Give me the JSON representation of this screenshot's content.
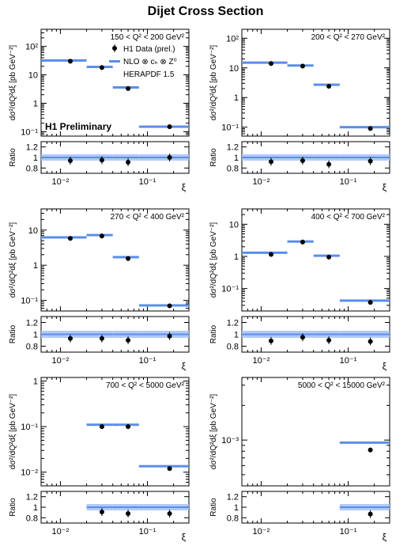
{
  "title": "Dijet Cross Section",
  "colors": {
    "theory": "#5a8ee8",
    "band": "#a9c4f5",
    "data": "#000000",
    "label_box": "#ffffff"
  },
  "chart_data": [
    {
      "type": "scatter",
      "panel": "top-left",
      "label": "150 < Q² < 200 GeV²",
      "ylabel": "dσ²/dQ²dξ [pb GeV⁻²]",
      "ratio_label": "Ratio",
      "xlabel": "ξ",
      "preliminary": "H1 Preliminary",
      "legend": {
        "placement": "top-right",
        "entries": [
          "H1 Data (prel.)",
          "NLO ⊗ cₕ ⊗ Z⁰",
          "HERAPDF 1.5"
        ]
      },
      "x_scale": "log",
      "xlim": [
        0.006,
        0.3
      ],
      "y_scale": "log",
      "ylim": [
        0.07,
        400
      ],
      "y_ticks": [
        0.1,
        1,
        10,
        100
      ],
      "y_tick_labels": [
        "10⁻¹",
        "1",
        "10",
        "10²"
      ],
      "bins": [
        [
          0.006,
          0.02
        ],
        [
          0.02,
          0.04
        ],
        [
          0.04,
          0.08
        ],
        [
          0.08,
          0.3
        ]
      ],
      "x": [
        0.013,
        0.03,
        0.06,
        0.18
      ],
      "data": [
        30,
        18,
        3.3,
        0.15
      ],
      "theory": [
        32,
        19,
        3.6,
        0.15
      ],
      "ratio": [
        0.94,
        0.95,
        0.91,
        1.0
      ],
      "ratio_ylim": [
        0.7,
        1.3
      ],
      "ratio_ticks": [
        0.8,
        1,
        1.2
      ]
    },
    {
      "type": "scatter",
      "panel": "top-right",
      "label": "200 < Q² < 270 GeV²",
      "ylabel": "dσ²/dQ²dξ [pb GeV⁻²]",
      "ratio_label": "Ratio",
      "xlabel": "ξ",
      "x_scale": "log",
      "xlim": [
        0.006,
        0.3
      ],
      "y_scale": "log",
      "ylim": [
        0.05,
        200
      ],
      "y_ticks": [
        0.1,
        1,
        10,
        100
      ],
      "y_tick_labels": [
        "10⁻¹",
        "1",
        "10",
        "10²"
      ],
      "bins": [
        [
          0.006,
          0.02
        ],
        [
          0.02,
          0.04
        ],
        [
          0.04,
          0.08
        ],
        [
          0.08,
          0.3
        ]
      ],
      "x": [
        0.013,
        0.03,
        0.06,
        0.18
      ],
      "data": [
        14,
        11.5,
        2.4,
        0.09
      ],
      "theory": [
        15,
        12,
        2.7,
        0.1
      ],
      "ratio": [
        0.92,
        0.94,
        0.87,
        0.93
      ],
      "ratio_ylim": [
        0.7,
        1.3
      ],
      "ratio_ticks": [
        0.8,
        1,
        1.2
      ]
    },
    {
      "type": "scatter",
      "panel": "middle-left",
      "label": "270 < Q² < 400 GeV²",
      "ylabel": "dσ²/dQ²dξ [pb GeV⁻²]",
      "ratio_label": "Ratio",
      "xlabel": "ξ",
      "x_scale": "log",
      "xlim": [
        0.006,
        0.3
      ],
      "y_scale": "log",
      "ylim": [
        0.05,
        40
      ],
      "y_ticks": [
        0.1,
        1,
        10
      ],
      "y_tick_labels": [
        "10⁻¹",
        "1",
        "10"
      ],
      "bins": [
        [
          0.006,
          0.02
        ],
        [
          0.02,
          0.04
        ],
        [
          0.04,
          0.08
        ],
        [
          0.08,
          0.3
        ]
      ],
      "x": [
        0.013,
        0.03,
        0.06,
        0.18
      ],
      "data": [
        5.8,
        6.8,
        1.55,
        0.07
      ],
      "theory": [
        6.2,
        7.2,
        1.7,
        0.072
      ],
      "ratio": [
        0.93,
        0.93,
        0.9,
        0.97
      ],
      "ratio_ylim": [
        0.7,
        1.3
      ],
      "ratio_ticks": [
        0.8,
        1,
        1.2
      ]
    },
    {
      "type": "scatter",
      "panel": "middle-right",
      "label": "400 < Q² < 700 GeV²",
      "ylabel": "dσ²/dQ²dξ [pb GeV⁻²]",
      "ratio_label": "Ratio",
      "xlabel": "ξ",
      "x_scale": "log",
      "xlim": [
        0.006,
        0.3
      ],
      "y_scale": "log",
      "ylim": [
        0.02,
        30
      ],
      "y_ticks": [
        0.1,
        1,
        10
      ],
      "y_tick_labels": [
        "10⁻¹",
        "1",
        "10"
      ],
      "bins": [
        [
          0.006,
          0.02
        ],
        [
          0.02,
          0.04
        ],
        [
          0.04,
          0.08
        ],
        [
          0.08,
          0.3
        ]
      ],
      "x": [
        0.013,
        0.03,
        0.06,
        0.18
      ],
      "data": [
        1.15,
        2.8,
        0.95,
        0.037
      ],
      "theory": [
        1.3,
        2.9,
        1.05,
        0.042
      ],
      "ratio": [
        0.89,
        0.95,
        0.9,
        0.88
      ],
      "ratio_ylim": [
        0.7,
        1.3
      ],
      "ratio_ticks": [
        0.8,
        1,
        1.2
      ]
    },
    {
      "type": "scatter",
      "panel": "bottom-left",
      "label": "700 < Q² < 5000 GeV²",
      "ylabel": "dσ²/dQ²dξ [pb GeV⁻²]",
      "ratio_label": "Ratio",
      "xlabel": "ξ",
      "x_scale": "log",
      "xlim": [
        0.006,
        0.3
      ],
      "y_scale": "log",
      "ylim": [
        0.005,
        1.2
      ],
      "y_ticks": [
        0.01,
        0.1,
        1
      ],
      "y_tick_labels": [
        "10⁻²",
        "10⁻¹",
        "1"
      ],
      "bins": [
        [
          0.02,
          0.04
        ],
        [
          0.04,
          0.08
        ],
        [
          0.08,
          0.3
        ]
      ],
      "x": [
        0.03,
        0.06,
        0.18
      ],
      "data": [
        0.1,
        0.1,
        0.012
      ],
      "theory": [
        0.11,
        0.11,
        0.0135
      ],
      "ratio": [
        0.91,
        0.88,
        0.88
      ],
      "ratio_ylim": [
        0.7,
        1.3
      ],
      "ratio_ticks": [
        0.8,
        1,
        1.2
      ]
    },
    {
      "type": "scatter",
      "panel": "bottom-right",
      "label": "5000 < Q² < 15000 GeV²",
      "ylabel": "dσ²/dQ²dξ [pb GeV⁻²]",
      "ratio_label": "Ratio",
      "xlabel": "ξ",
      "x_scale": "log",
      "xlim": [
        0.006,
        0.3
      ],
      "y_scale": "log",
      "ylim": [
        0.0004,
        0.0035
      ],
      "y_ticks": [
        0.001
      ],
      "y_tick_labels": [
        "10⁻³"
      ],
      "bins": [
        [
          0.08,
          0.3
        ]
      ],
      "x": [
        0.18
      ],
      "data": [
        0.00082
      ],
      "theory": [
        0.00095
      ],
      "ratio": [
        0.87
      ],
      "ratio_ylim": [
        0.7,
        1.3
      ],
      "ratio_ticks": [
        0.8,
        1,
        1.2
      ]
    }
  ]
}
